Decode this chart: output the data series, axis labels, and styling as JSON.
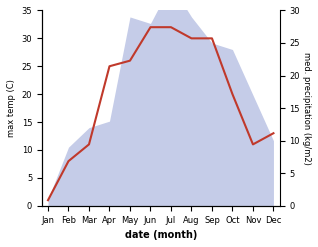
{
  "months": [
    "Jan",
    "Feb",
    "Mar",
    "Apr",
    "May",
    "Jun",
    "Jul",
    "Aug",
    "Sep",
    "Oct",
    "Nov",
    "Dec"
  ],
  "temp_max": [
    1,
    8,
    11,
    25,
    26,
    32,
    32,
    30,
    30,
    20,
    11,
    13
  ],
  "precipitation": [
    1,
    9,
    12,
    13,
    29,
    28,
    34,
    29,
    25,
    24,
    17,
    10
  ],
  "temp_color": "#c0392b",
  "precip_fill_color": "#c5cce8",
  "precip_edge_color": "#aab4d8",
  "temp_ylim": [
    0,
    35
  ],
  "precip_ylim": [
    0,
    30
  ],
  "temp_yticks": [
    0,
    5,
    10,
    15,
    20,
    25,
    30,
    35
  ],
  "precip_yticks": [
    0,
    5,
    10,
    15,
    20,
    25,
    30
  ],
  "xlabel": "date (month)",
  "ylabel_left": "max temp (C)",
  "ylabel_right": "med. precipitation (kg/m2)",
  "background_color": "#ffffff"
}
